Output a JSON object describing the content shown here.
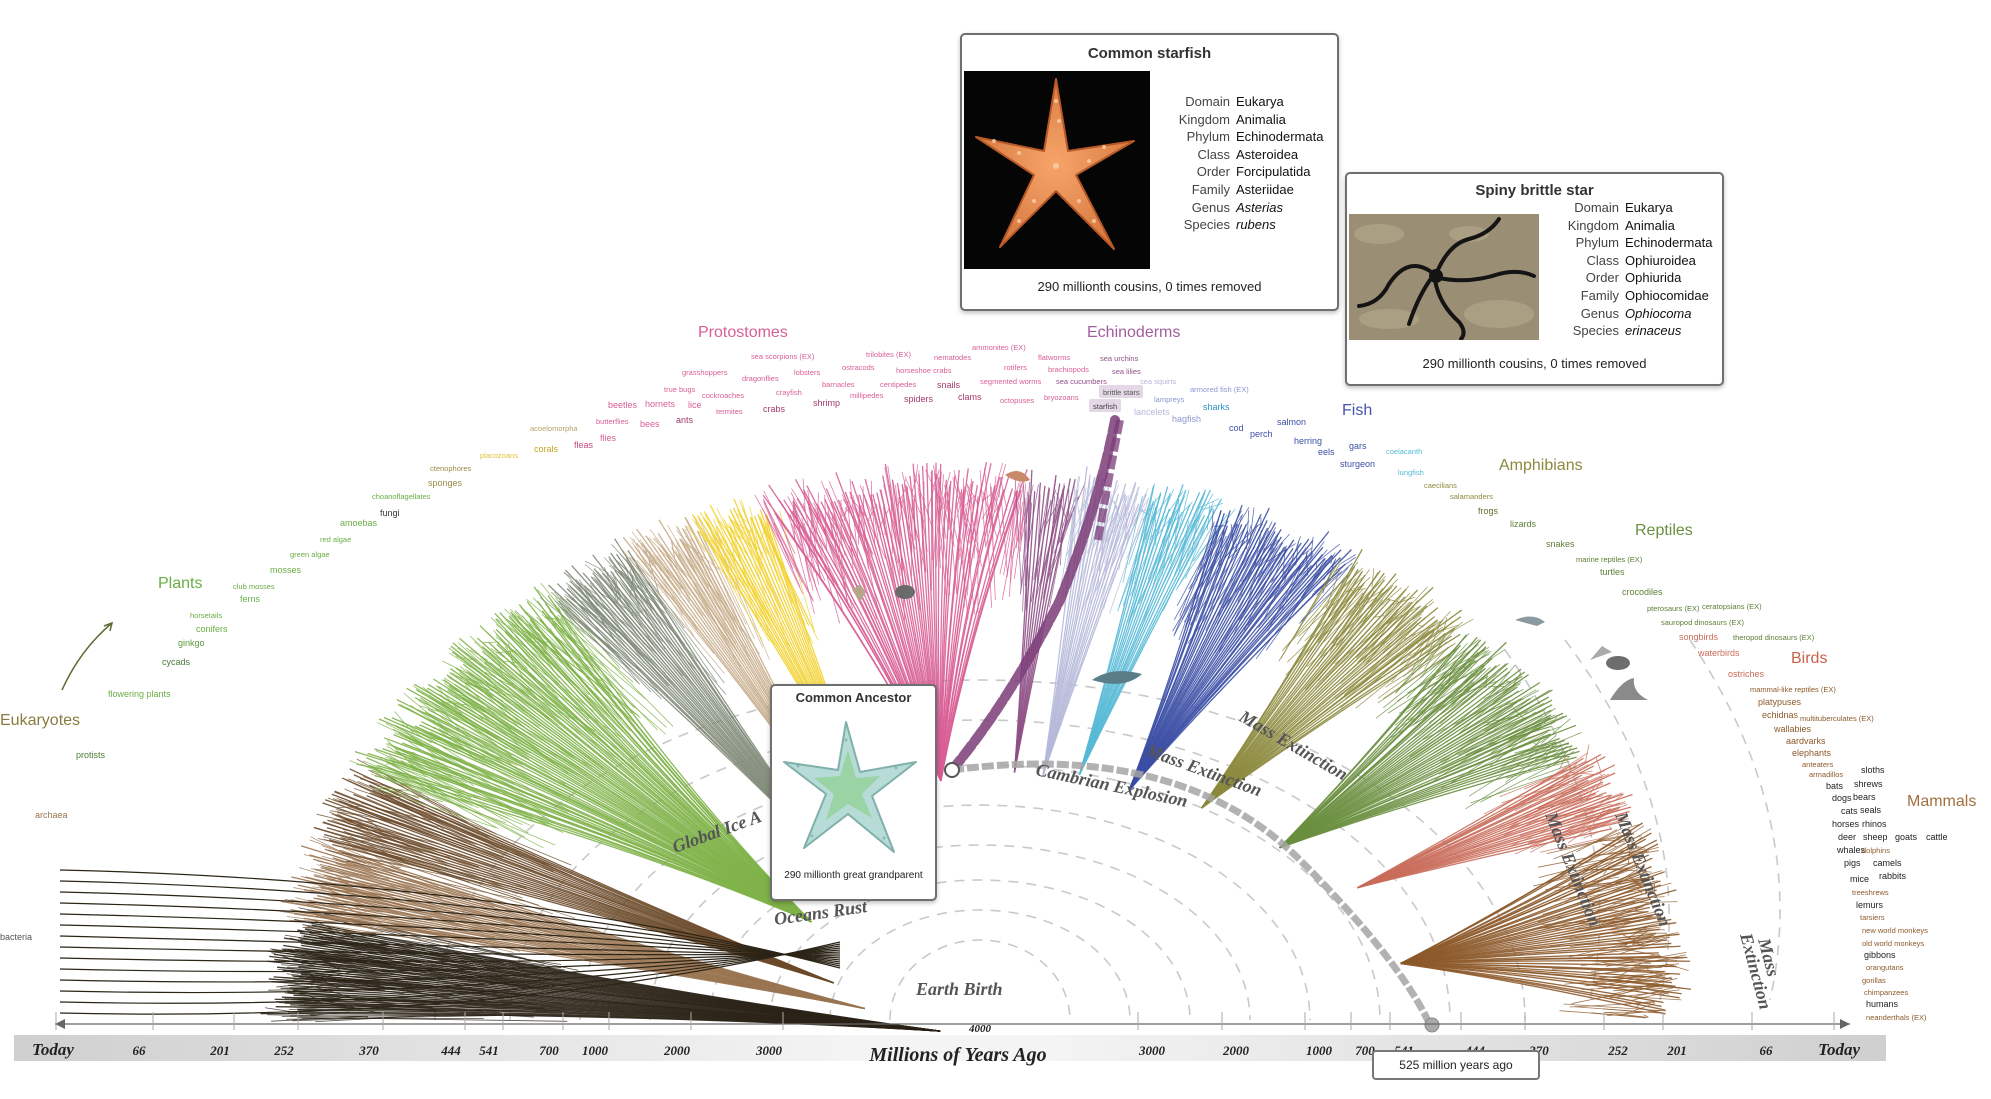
{
  "axis": {
    "left_ticks": [
      "Today",
      "66",
      "201",
      "252",
      "370",
      "444",
      "541",
      "700",
      "1000",
      "2000",
      "3000"
    ],
    "right_ticks": [
      "3000",
      "2000",
      "1000",
      "700",
      "541",
      "444",
      "370",
      "252",
      "201",
      "66",
      "Today"
    ],
    "center_top": "4000",
    "center_label": "Millions of Years Ago",
    "marker_label": "525 million years ago"
  },
  "events": {
    "earth_birth": "Earth Birth",
    "oceans_rust": "Oceans Rust",
    "global_ice": "Global Ice A",
    "cambrian": "Cambrian Explosion",
    "mass_extinction": "Mass Extinction",
    "mass_extinction_split_1": "Mass",
    "mass_extinction_split_2": "Extinction"
  },
  "groups": {
    "eukaryotes": "Eukaryotes",
    "plants": "Plants",
    "protostomes": "Protostomes",
    "echinoderms": "Echinoderms",
    "fish": "Fish",
    "amphibians": "Amphibians",
    "reptiles": "Reptiles",
    "birds": "Birds",
    "mammals": "Mammals"
  },
  "colors": {
    "bacteria": "#2b2417",
    "archaea": "#9a7451",
    "protists": "#6b4a2a",
    "plants": "#7fb349",
    "fungi_gray": "#7f8a78",
    "sponges": "#c7ad8b",
    "corals": "#f2d230",
    "protostomes": "#d85f95",
    "echinoderms": "#8e4f86",
    "fish_light": "#56b9d6",
    "fish": "#3c4fa5",
    "amphibians": "#8c8a3d",
    "reptiles": "#6a8f3f",
    "birds": "#c96c5a",
    "mammals": "#8d5a2b",
    "highlight_path": "#7b3c78"
  },
  "leaves": {
    "bacteria": "bacteria",
    "archaea": "archaea",
    "protists": "protists",
    "flowering_plants": "flowering plants",
    "cycads": "cycads",
    "ginkgo": "ginkgo",
    "conifers": "conifers",
    "horsetails": "horsetails",
    "ferns": "ferns",
    "club_mosses": "club mosses",
    "mosses": "mosses",
    "green_algae": "green algae",
    "red_algae": "red algae",
    "amoebas": "amoebas",
    "fungi": "fungi",
    "choanoflagellates": "choanoflagellates",
    "sponges": "sponges",
    "ctenophores": "ctenophores",
    "placozoans": "placozoans",
    "acoelomorpha": "acoelomorpha",
    "corals": "corals",
    "fleas": "fleas",
    "flies": "flies",
    "butterflies": "butterflies",
    "beetles": "beetles",
    "bees": "bees",
    "hornets": "hornets",
    "ants": "ants",
    "true_bugs": "true bugs",
    "lice": "lice",
    "grasshoppers": "grasshoppers",
    "cockroaches": "cockroaches",
    "termites": "termites",
    "dragonflies": "dragonflies",
    "crabs": "crabs",
    "crayfish": "crayfish",
    "sea_scorpions": "sea scorpions (EX)",
    "lobsters": "lobsters",
    "shrimp": "shrimp",
    "barnacles": "barnacles",
    "ostracods": "ostracods",
    "trilobites": "trilobites (EX)",
    "millipedes": "millipedes",
    "horseshoe_crabs": "horseshoe crabs",
    "centipedes": "centipedes",
    "spiders": "spiders",
    "nematodes": "nematodes",
    "snails": "snails",
    "ammonites": "ammonites (EX)",
    "clams": "clams",
    "segmented_worms": "segmented worms",
    "rotifers": "rotifers",
    "octopuses": "octopuses",
    "flatworms": "flatworms",
    "brachiopods": "brachiopods",
    "bryozoans": "bryozoans",
    "sea_urchins": "sea urchins",
    "sea_cucumbers": "sea cucumbers",
    "sea_lilies": "sea lilies",
    "brittle_stars": "brittle stars",
    "starfish": "starfish",
    "sea_squirts": "sea squirts",
    "lancelets": "lancelets",
    "lampreys": "lampreys",
    "armored_fish": "armored fish (EX)",
    "hagfish": "hagfish",
    "sharks": "sharks",
    "cod": "cod",
    "perch": "perch",
    "salmon": "salmon",
    "herring": "herring",
    "eels": "eels",
    "gars": "gars",
    "sturgeon": "sturgeon",
    "coelacanth": "coelacanth",
    "lungfish": "lungfish",
    "caecilians": "caecilians",
    "salamanders": "salamanders",
    "frogs": "frogs",
    "lizards": "lizards",
    "snakes": "snakes",
    "marine_reptiles": "marine reptiles (EX)",
    "turtles": "turtles",
    "crocodiles": "crocodiles",
    "pterosaurs": "pterosaurs (EX)",
    "ceratopsians": "ceratopsians (EX)",
    "sauropod": "sauropod dinosaurs (EX)",
    "theropod": "theropod dinosaurs (EX)",
    "songbirds": "songbirds",
    "waterbirds": "waterbirds",
    "ostriches": "ostriches",
    "mammal_like": "mammal-like reptiles (EX)",
    "platypuses": "platypuses",
    "echidnas": "echidnas",
    "multituberculates": "multituberculates (EX)",
    "wallabies": "wallabies",
    "aardvarks": "aardvarks",
    "elephants": "elephants",
    "anteaters": "anteaters",
    "armadillos": "armadillos",
    "sloths": "sloths",
    "bats": "bats",
    "shrews": "shrews",
    "dogs": "dogs",
    "bears": "bears",
    "cats": "cats",
    "seals": "seals",
    "horses": "horses",
    "rhinos": "rhinos",
    "deer": "deer",
    "sheep": "sheep",
    "goats": "goats",
    "cattle": "cattle",
    "whales": "whales",
    "dolphins": "dolphins",
    "pigs": "pigs",
    "camels": "camels",
    "mice": "mice",
    "rabbits": "rabbits",
    "treeshrews": "treeshrews",
    "lemurs": "lemurs",
    "tarsiers": "tarsiers",
    "new_world_monkeys": "new world monkeys",
    "old_world_monkeys": "old world monkeys",
    "gibbons": "gibbons",
    "orangutans": "orangutans",
    "gorillas": "gorillas",
    "chimpanzees": "chimpanzees",
    "humans": "humans",
    "neanderthals": "neanderthals (EX)"
  },
  "cards": {
    "starfish": {
      "title": "Common starfish",
      "rows": [
        {
          "k": "Domain",
          "v": "Eukarya"
        },
        {
          "k": "Kingdom",
          "v": "Animalia"
        },
        {
          "k": "Phylum",
          "v": "Echinodermata"
        },
        {
          "k": "Class",
          "v": "Asteroidea"
        },
        {
          "k": "Order",
          "v": "Forcipulatida"
        },
        {
          "k": "Family",
          "v": "Asteriidae"
        },
        {
          "k": "Genus",
          "v": "Asterias"
        },
        {
          "k": "Species",
          "v": "rubens"
        }
      ],
      "cousins": "290 millionth cousins, 0  times removed"
    },
    "brittle": {
      "title": "Spiny brittle star",
      "rows": [
        {
          "k": "Domain",
          "v": "Eukarya"
        },
        {
          "k": "Kingdom",
          "v": "Animalia"
        },
        {
          "k": "Phylum",
          "v": "Echinodermata"
        },
        {
          "k": "Class",
          "v": "Ophiuroidea"
        },
        {
          "k": "Order",
          "v": "Ophiurida"
        },
        {
          "k": "Family",
          "v": "Ophiocomidae"
        },
        {
          "k": "Genus",
          "v": "Ophiocoma"
        },
        {
          "k": "Species",
          "v": "erinaceus"
        }
      ],
      "cousins": "290 millionth cousins, 0  times removed"
    },
    "ancestor": {
      "title": "Common Ancestor",
      "caption": "290 millionth great grandparent"
    }
  }
}
